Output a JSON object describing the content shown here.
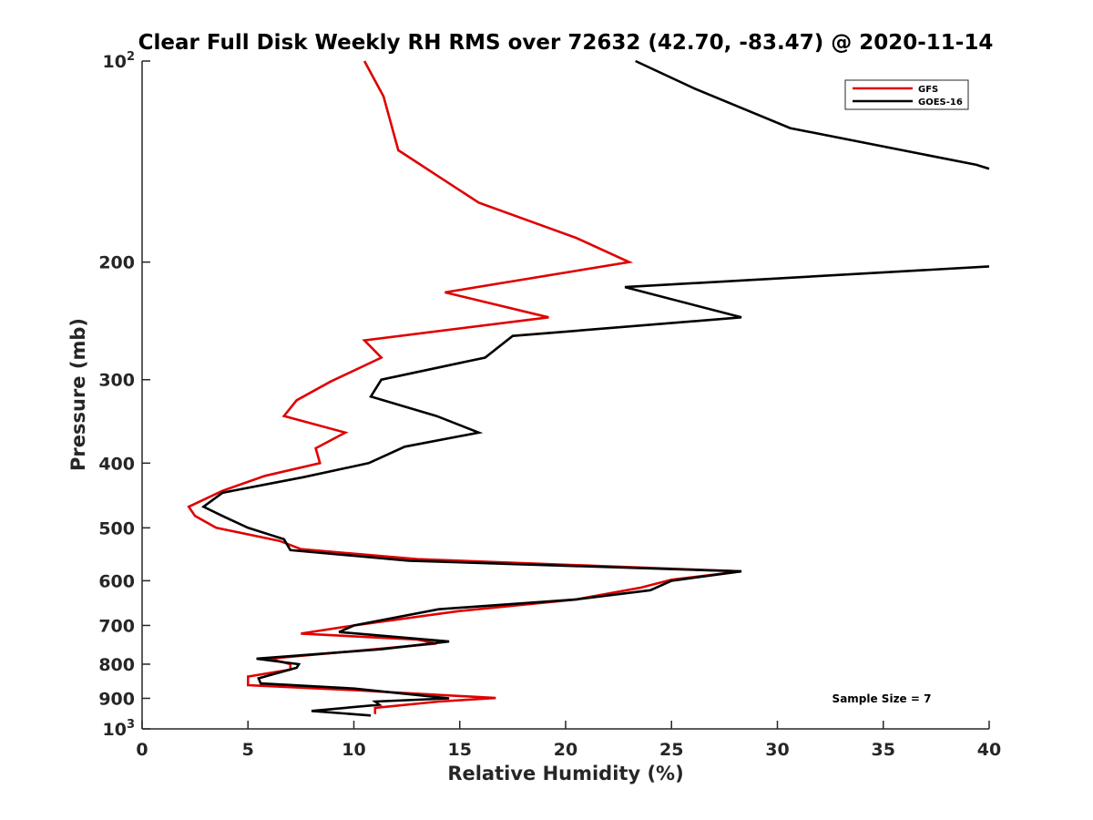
{
  "chart_data": {
    "type": "line",
    "title": "Clear Full Disk Weekly RH RMS over 72632 (42.70, -83.47) @ 2020-11-14",
    "xlabel": "Relative Humidity (%)",
    "ylabel": "Pressure (mb)",
    "xlim": [
      0,
      40
    ],
    "ylim": [
      100,
      1000
    ],
    "y_scale": "log",
    "y_reversed": true,
    "x_ticks": [
      "0",
      "5",
      "10",
      "15",
      "20",
      "25",
      "30",
      "35",
      "40"
    ],
    "y_ticks": [
      {
        "value": 100,
        "base": "10",
        "exp": "2"
      },
      {
        "value": 200,
        "label": "200"
      },
      {
        "value": 300,
        "label": "300"
      },
      {
        "value": 400,
        "label": "400"
      },
      {
        "value": 500,
        "label": "500"
      },
      {
        "value": 600,
        "label": "600"
      },
      {
        "value": 700,
        "label": "700"
      },
      {
        "value": 800,
        "label": "800"
      },
      {
        "value": 900,
        "label": "900"
      },
      {
        "value": 1000,
        "base": "10",
        "exp": "3"
      }
    ],
    "legend_position": "top-right",
    "annotation": "Sample Size = 7",
    "series": [
      {
        "name": "GFS",
        "color": "#e00000",
        "points": [
          [
            10.5,
            100
          ],
          [
            11.4,
            113
          ],
          [
            12.1,
            136
          ],
          [
            15.9,
            163
          ],
          [
            20.5,
            184
          ],
          [
            23.0,
            200
          ],
          [
            14.3,
            222
          ],
          [
            19.2,
            242
          ],
          [
            10.5,
            262
          ],
          [
            11.3,
            278
          ],
          [
            8.9,
            302
          ],
          [
            7.3,
            322
          ],
          [
            6.7,
            340
          ],
          [
            9.6,
            360
          ],
          [
            8.2,
            380
          ],
          [
            8.4,
            400
          ],
          [
            5.8,
            418
          ],
          [
            3.8,
            440
          ],
          [
            2.2,
            465
          ],
          [
            2.5,
            480
          ],
          [
            3.5,
            500
          ],
          [
            6.5,
            523
          ],
          [
            7.5,
            538
          ],
          [
            13.0,
            557
          ],
          [
            28.3,
            581
          ],
          [
            25.0,
            598
          ],
          [
            23.5,
            615
          ],
          [
            20.5,
            640
          ],
          [
            15.0,
            666
          ],
          [
            10.0,
            700
          ],
          [
            7.5,
            720
          ],
          [
            13.0,
            735
          ],
          [
            13.9,
            745
          ],
          [
            11.0,
            760
          ],
          [
            6.0,
            785
          ],
          [
            7.0,
            800
          ],
          [
            7.0,
            815
          ],
          [
            5.0,
            835
          ],
          [
            5.0,
            860
          ],
          [
            10.0,
            875
          ],
          [
            16.7,
            899
          ],
          [
            14.0,
            910
          ],
          [
            11.0,
            930
          ],
          [
            11.0,
            950
          ]
        ]
      },
      {
        "name": "GOES-16",
        "color": "#000000",
        "points": [
          [
            23.3,
            100
          ],
          [
            26.1,
            110
          ],
          [
            30.6,
            126
          ],
          [
            39.4,
            143
          ],
          [
            40.0,
            145
          ],
          null,
          [
            40.0,
            203
          ],
          [
            22.8,
            218
          ],
          [
            28.3,
            242
          ],
          [
            17.5,
            258
          ],
          [
            16.2,
            278
          ],
          [
            11.3,
            300
          ],
          [
            10.8,
            318
          ],
          [
            13.9,
            340
          ],
          [
            15.9,
            360
          ],
          [
            12.4,
            378
          ],
          [
            10.7,
            400
          ],
          [
            7.6,
            420
          ],
          [
            3.8,
            443
          ],
          [
            2.9,
            465
          ],
          [
            3.8,
            480
          ],
          [
            5.0,
            500
          ],
          [
            6.7,
            520
          ],
          [
            7.0,
            540
          ],
          [
            12.6,
            560
          ],
          [
            28.3,
            581
          ],
          [
            25.0,
            600
          ],
          [
            24.0,
            620
          ],
          [
            20.5,
            640
          ],
          [
            14.0,
            662
          ],
          [
            10.0,
            700
          ],
          [
            9.3,
            716
          ],
          [
            14.5,
            740
          ],
          [
            11.3,
            760
          ],
          [
            5.4,
            785
          ],
          [
            7.4,
            800
          ],
          [
            7.3,
            810
          ],
          [
            5.5,
            840
          ],
          [
            5.6,
            855
          ],
          [
            10.0,
            870
          ],
          [
            14.5,
            900
          ],
          [
            11.0,
            910
          ],
          [
            11.2,
            920
          ],
          [
            8.0,
            940
          ],
          [
            10.8,
            955
          ]
        ]
      }
    ]
  }
}
